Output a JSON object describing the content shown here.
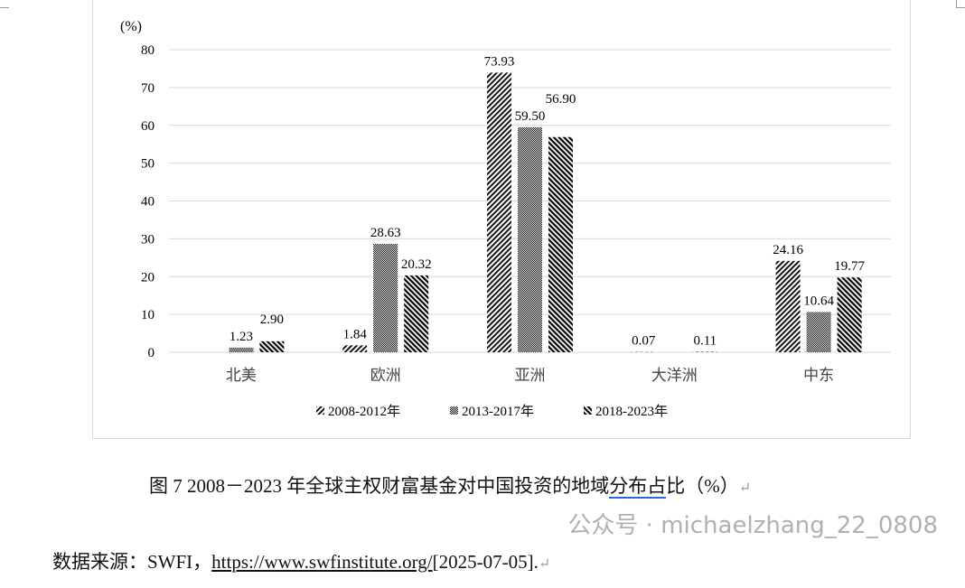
{
  "chart_data": {
    "type": "bar",
    "ylabel": "(%)",
    "ylim": [
      0,
      80
    ],
    "yticks": [
      0,
      10,
      20,
      30,
      40,
      50,
      60,
      70,
      80
    ],
    "grid": true,
    "legend_position": "bottom",
    "categories": [
      "北美",
      "欧洲",
      "亚洲",
      "大洋洲",
      "中东"
    ],
    "series": [
      {
        "name": "2008-2012年",
        "values": [
          null,
          1.84,
          73.93,
          0.07,
          24.16
        ],
        "labels": [
          "",
          "1.84",
          "73.93",
          "0.07",
          "24.16"
        ],
        "pattern": "diagonal-down"
      },
      {
        "name": "2013-2017年",
        "values": [
          1.23,
          28.63,
          59.5,
          null,
          10.64
        ],
        "labels": [
          "1.23",
          "28.63",
          "59.50",
          "",
          "10.64"
        ],
        "pattern": "dense-dots"
      },
      {
        "name": "2018-2023年",
        "values": [
          2.9,
          20.32,
          56.9,
          0.11,
          19.77
        ],
        "labels": [
          "2.90",
          "20.32",
          "56.90",
          "0.11",
          "19.77"
        ],
        "pattern": "diagonal-up"
      }
    ]
  },
  "caption": {
    "prefix": "图 7 2008－2023 年全球主权财富基金对中国投资的地域",
    "underlined": "分布占",
    "suffix": "比（%）"
  },
  "source": {
    "label": "数据来源：SWFI，",
    "link": "https://www.swfinstitute.org/",
    "date": "[2025-07-05]."
  },
  "watermark": "公众号 · michaelzhang_22_0808",
  "return_mark": "↵"
}
